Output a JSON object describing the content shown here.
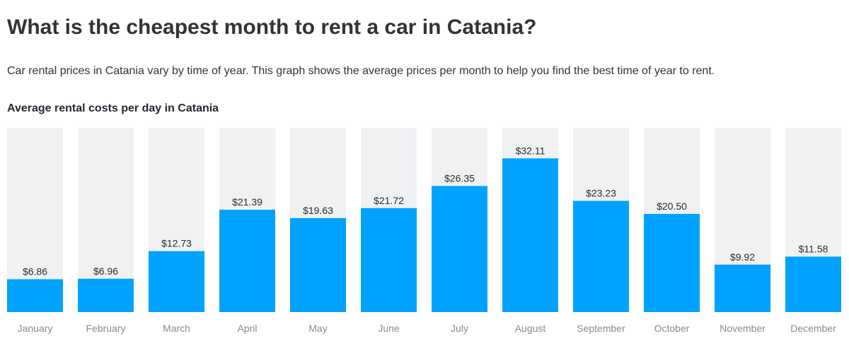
{
  "header": {
    "title": "What is the cheapest month to rent a car in Catania?",
    "description": "Car rental prices in Catania vary by time of year. This graph shows the average prices per month to help you find the best time of year to rent."
  },
  "colors": {
    "bar": "#00a2ff",
    "track": "#f0f1f3",
    "value_label": "#2b2b2b",
    "month_label": "#8a8a8a"
  },
  "chart_data": {
    "type": "bar",
    "title": "Average rental costs per day in Catania",
    "xlabel": "",
    "ylabel": "",
    "ylim": [
      0,
      38.5
    ],
    "categories": [
      "January",
      "February",
      "March",
      "April",
      "May",
      "June",
      "July",
      "August",
      "September",
      "October",
      "November",
      "December"
    ],
    "values": [
      6.86,
      6.96,
      12.73,
      21.39,
      19.63,
      21.72,
      26.35,
      32.11,
      23.23,
      20.5,
      9.92,
      11.58
    ],
    "value_labels": [
      "$6.86",
      "$6.96",
      "$12.73",
      "$21.39",
      "$19.63",
      "$21.72",
      "$26.35",
      "$32.11",
      "$23.23",
      "$20.50",
      "$9.92",
      "$11.58"
    ],
    "grid": false,
    "legend": "none"
  }
}
